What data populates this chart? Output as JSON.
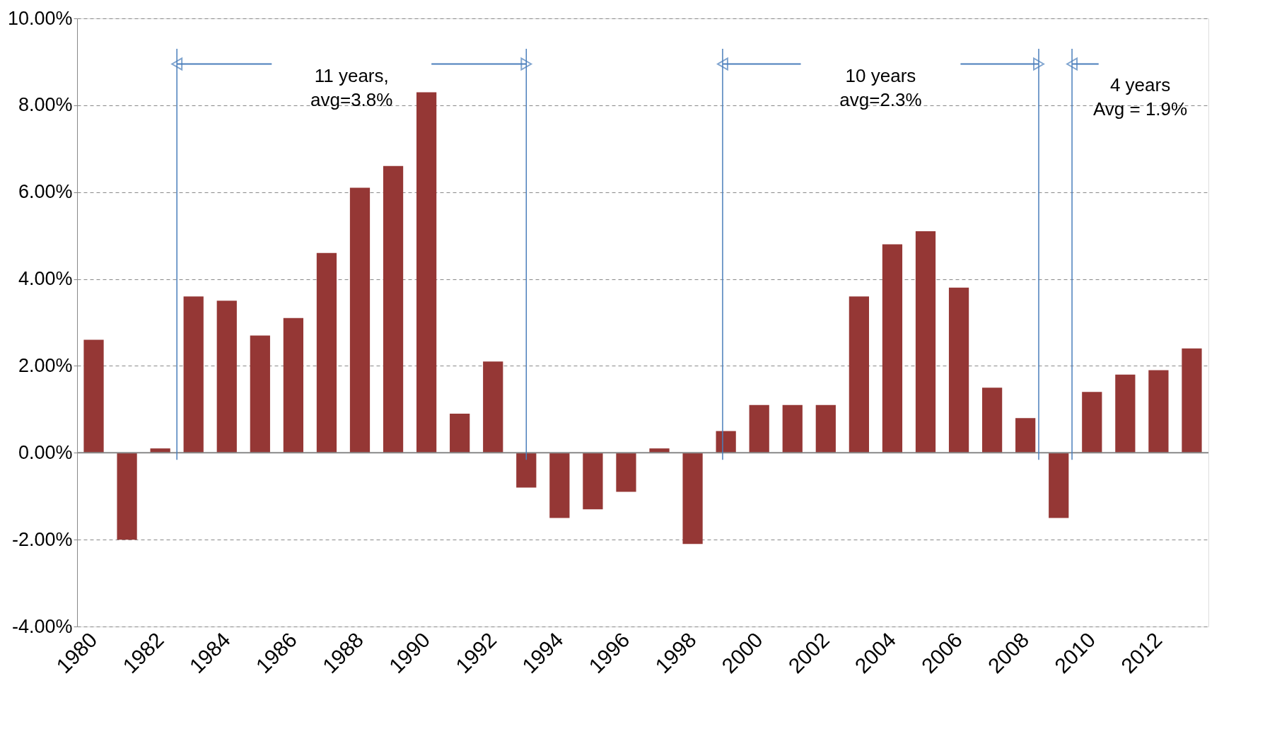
{
  "chart_data": {
    "type": "bar",
    "x": [
      1980,
      1981,
      1982,
      1983,
      1984,
      1985,
      1986,
      1987,
      1988,
      1989,
      1990,
      1991,
      1992,
      1993,
      1994,
      1995,
      1996,
      1997,
      1998,
      1999,
      2000,
      2001,
      2002,
      2003,
      2004,
      2005,
      2006,
      2007,
      2008,
      2009,
      2010,
      2011,
      2012,
      2013
    ],
    "values": [
      2.6,
      -2.0,
      0.1,
      3.6,
      3.5,
      2.7,
      3.1,
      4.6,
      6.1,
      6.6,
      8.3,
      0.9,
      2.1,
      -0.8,
      -1.5,
      -1.3,
      -0.9,
      0.1,
      -2.1,
      0.5,
      1.1,
      1.1,
      1.1,
      3.6,
      4.8,
      5.1,
      3.8,
      1.5,
      0.8,
      -1.5,
      1.4,
      1.8,
      1.9,
      2.4
    ],
    "color": "#953735",
    "xlim": [
      1979.5,
      2013.5
    ],
    "xticks": [
      1980,
      1982,
      1984,
      1986,
      1988,
      1990,
      1992,
      1994,
      1996,
      1998,
      2000,
      2002,
      2004,
      2006,
      2008,
      2010,
      2012
    ],
    "ylim": [
      -4,
      10
    ],
    "yticks": [
      {
        "value": -4,
        "label": "-4.00%"
      },
      {
        "value": -2,
        "label": "-2.00%"
      },
      {
        "value": 0,
        "label": "0.00%"
      },
      {
        "value": 2,
        "label": "2.00%"
      },
      {
        "value": 4,
        "label": "4.00%"
      },
      {
        "value": 6,
        "label": "6.00%"
      },
      {
        "value": 8,
        "label": "8.00%"
      },
      {
        "value": 10,
        "label": "10.00%"
      }
    ],
    "grid": "y",
    "ref_lines": [
      {
        "axis": "x",
        "value": 1982.5,
        "color": "#4a7ebb"
      },
      {
        "axis": "x",
        "value": 1993,
        "color": "#4a7ebb"
      },
      {
        "axis": "x",
        "value": 1998.9,
        "color": "#4a7ebb"
      },
      {
        "axis": "x",
        "value": 2008.4,
        "color": "#4a7ebb"
      },
      {
        "axis": "x",
        "value": 2009.4,
        "color": "#4a7ebb"
      }
    ],
    "annotations": [
      "11 years,\navg=3.8%",
      "10 years\navg=2.3%",
      "4 years\nAvg = 1.9%"
    ]
  }
}
